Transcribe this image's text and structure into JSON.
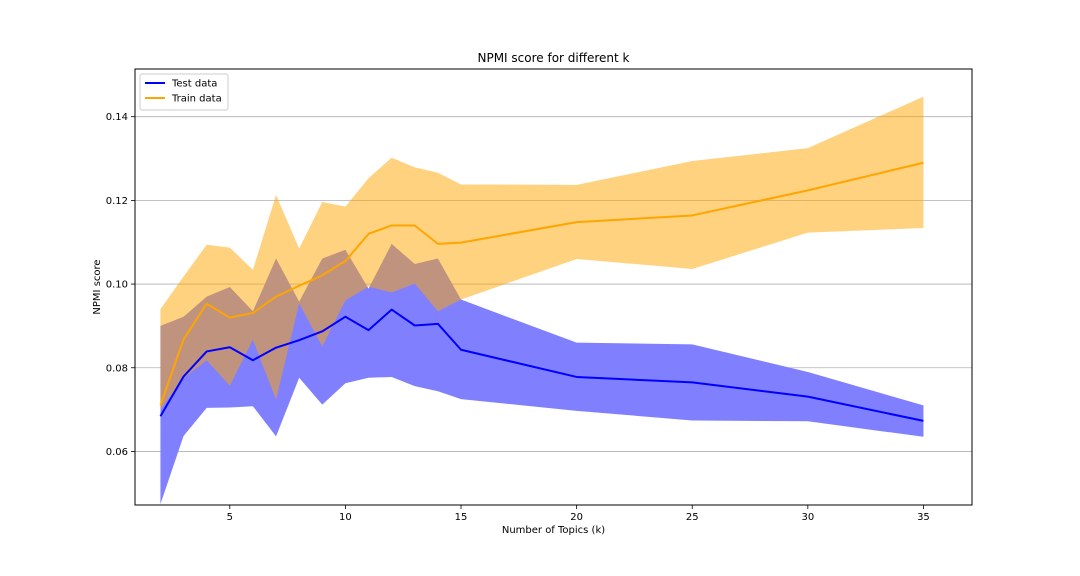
{
  "chart_data": {
    "type": "line",
    "title": "NPMI score for different k",
    "xlabel": "Number of Topics (k)",
    "ylabel": "NPMI score",
    "xlim": [
      0.9,
      37.1
    ],
    "ylim": [
      0.0472,
      0.1514
    ],
    "xticks": [
      5,
      10,
      15,
      20,
      25,
      30,
      35
    ],
    "yticks": [
      0.06,
      0.08,
      0.1,
      0.12,
      0.14
    ],
    "ytick_labels": [
      "0.06",
      "0.08",
      "0.10",
      "0.12",
      "0.14"
    ],
    "grid": "horizontal",
    "legend_position": "top-left",
    "x": [
      2,
      3,
      4,
      5,
      6,
      7,
      8,
      9,
      10,
      11,
      12,
      13,
      14,
      15,
      20,
      25,
      30,
      35
    ],
    "series": [
      {
        "name": "Test data",
        "color": "#0000ff",
        "fill_color": "#8080ff",
        "values": [
          0.0684,
          0.0779,
          0.0839,
          0.0849,
          0.0818,
          0.0848,
          0.0866,
          0.0887,
          0.0922,
          0.089,
          0.0939,
          0.0901,
          0.0905,
          0.0843,
          0.0778,
          0.0765,
          0.0731,
          0.0673
        ],
        "upper": [
          0.09,
          0.0922,
          0.097,
          0.0993,
          0.0935,
          0.1061,
          0.0958,
          0.1061,
          0.1082,
          0.0989,
          0.1096,
          0.1048,
          0.1061,
          0.0963,
          0.086,
          0.0856,
          0.079,
          0.071
        ],
        "lower": [
          0.0474,
          0.0637,
          0.0704,
          0.0705,
          0.0708,
          0.0636,
          0.0776,
          0.0712,
          0.0763,
          0.0776,
          0.0778,
          0.0756,
          0.0744,
          0.0725,
          0.0697,
          0.0674,
          0.0672,
          0.0635
        ]
      },
      {
        "name": "Train data",
        "color": "#ffa500",
        "fill_color": "#ffd280",
        "values": [
          0.071,
          0.0868,
          0.0953,
          0.092,
          0.0931,
          0.097,
          0.0996,
          0.1021,
          0.1055,
          0.112,
          0.114,
          0.114,
          0.1096,
          0.1099,
          0.1148,
          0.1164,
          0.1224,
          0.129
        ],
        "upper": [
          0.094,
          0.1018,
          0.1094,
          0.1087,
          0.1034,
          0.1213,
          0.1085,
          0.1196,
          0.1185,
          0.1253,
          0.1302,
          0.1279,
          0.1266,
          0.1238,
          0.1237,
          0.1294,
          0.1325,
          0.1448
        ],
        "lower": [
          0.07,
          0.0775,
          0.0818,
          0.0757,
          0.0867,
          0.0724,
          0.0954,
          0.0851,
          0.0961,
          0.0994,
          0.098,
          0.1001,
          0.0935,
          0.0963,
          0.106,
          0.1036,
          0.1123,
          0.1134
        ]
      }
    ]
  }
}
